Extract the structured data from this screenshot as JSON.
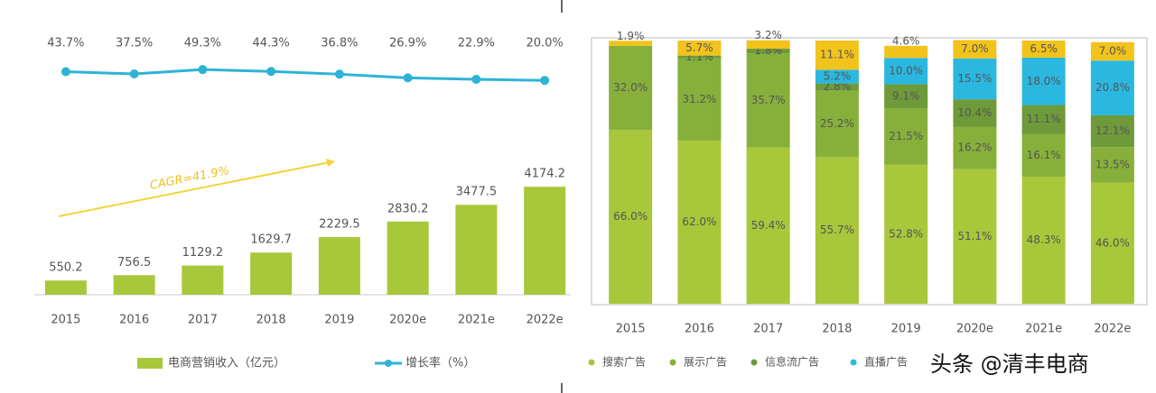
{
  "chart_data": [
    {
      "type": "bar",
      "categories": [
        "2015",
        "2016",
        "2017",
        "2018",
        "2019",
        "2020e",
        "2021e",
        "2022e"
      ],
      "ylim": [
        0,
        10000
      ],
      "y2lim": [
        -560,
        140
      ],
      "annotation": "CAGR=41.9%",
      "series": [
        {
          "name": "电商营销收入（亿元）",
          "color": "#a8c73a",
          "values": [
            550.2,
            756.5,
            1129.2,
            1629.7,
            2229.5,
            2830.2,
            3477.5,
            4174.2
          ]
        },
        {
          "name": "增长率（%）",
          "color": "#2eb3d6",
          "type": "line",
          "axis": "y2",
          "values": [
            43.7,
            37.5,
            49.3,
            44.3,
            36.8,
            26.9,
            22.9,
            20.0
          ],
          "value_labels": [
            "43.7%",
            "37.5%",
            "49.3%",
            "44.3%",
            "36.8%",
            "26.9%",
            "22.9%",
            "20.0%"
          ]
        }
      ]
    },
    {
      "type": "stacked-bar",
      "categories": [
        "2015",
        "2016",
        "2017",
        "2018",
        "2019",
        "2020e",
        "2021e",
        "2022e"
      ],
      "ylim": [
        0,
        100
      ],
      "series": [
        {
          "name": "搜索广告",
          "color": "#a8c73a",
          "values": [
            66.0,
            62.0,
            59.4,
            55.7,
            52.8,
            51.1,
            48.3,
            46.0
          ],
          "value_labels": [
            "66.0%",
            "62.0%",
            "59.4%",
            "55.7%",
            "52.8%",
            "51.1%",
            "48.3%",
            "46.0%"
          ]
        },
        {
          "name": "展示广告",
          "color": "#86b03a",
          "values": [
            32.0,
            31.2,
            35.7,
            25.2,
            21.5,
            16.2,
            16.1,
            13.5
          ],
          "value_labels": [
            "32.0%",
            "31.2%",
            "35.7%",
            "25.2%",
            "21.5%",
            "16.2%",
            "16.1%",
            "13.5%"
          ]
        },
        {
          "name": "信息流广告",
          "color": "#6e9a3a",
          "values": [
            null,
            1.1,
            1.8,
            2.8,
            9.1,
            10.4,
            11.1,
            12.1
          ],
          "value_labels": [
            null,
            "1.1%",
            "1.8%",
            "2.8%",
            "9.1%",
            "10.4%",
            "11.1%",
            "12.1%"
          ]
        },
        {
          "name": "直播广告",
          "color": "#2ab8e0",
          "values": [
            null,
            null,
            null,
            5.2,
            10.0,
            15.5,
            18.0,
            20.8
          ],
          "value_labels": [
            null,
            null,
            null,
            "5.2%",
            "10.0%",
            "15.5%",
            "18.0%",
            "20.8%"
          ]
        },
        {
          "color": "#f2c31a",
          "values": [
            1.9,
            5.7,
            3.2,
            11.1,
            4.6,
            7.0,
            6.5,
            7.0
          ],
          "value_labels": [
            "1.9%",
            "5.7%",
            "3.2%",
            "11.1%",
            "4.6%",
            "7.0%",
            "6.5%",
            "7.0%"
          ]
        }
      ]
    }
  ],
  "watermark": "头条 @清丰电商"
}
